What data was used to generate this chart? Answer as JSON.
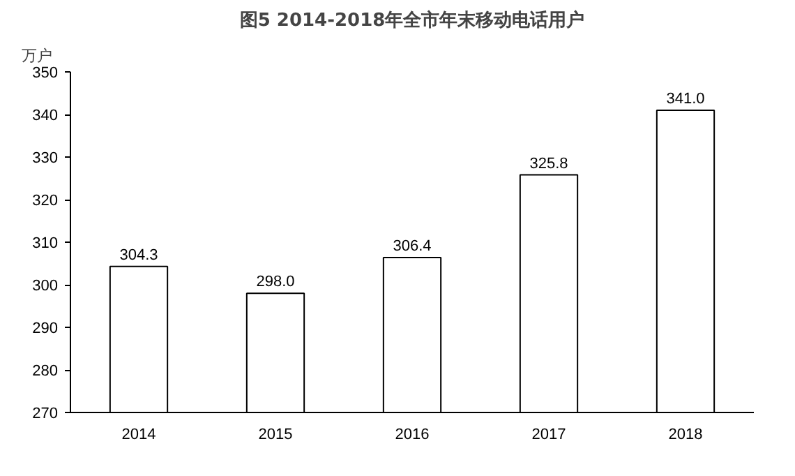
{
  "chart_data": {
    "type": "bar",
    "title": "图5 2014-2018年全市年末移动电话用户",
    "ylabel": "万户",
    "categories": [
      "2014",
      "2015",
      "2016",
      "2017",
      "2018"
    ],
    "values": [
      304.3,
      298.0,
      306.4,
      325.8,
      341.0
    ],
    "color": "#ffffff",
    "ylim": [
      270,
      350
    ],
    "yticks": [
      270,
      280,
      290,
      300,
      310,
      320,
      330,
      340,
      350
    ],
    "value_labels": [
      "304.3",
      "298.0",
      "306.4",
      "325.8",
      "341.0"
    ],
    "grid": false
  }
}
